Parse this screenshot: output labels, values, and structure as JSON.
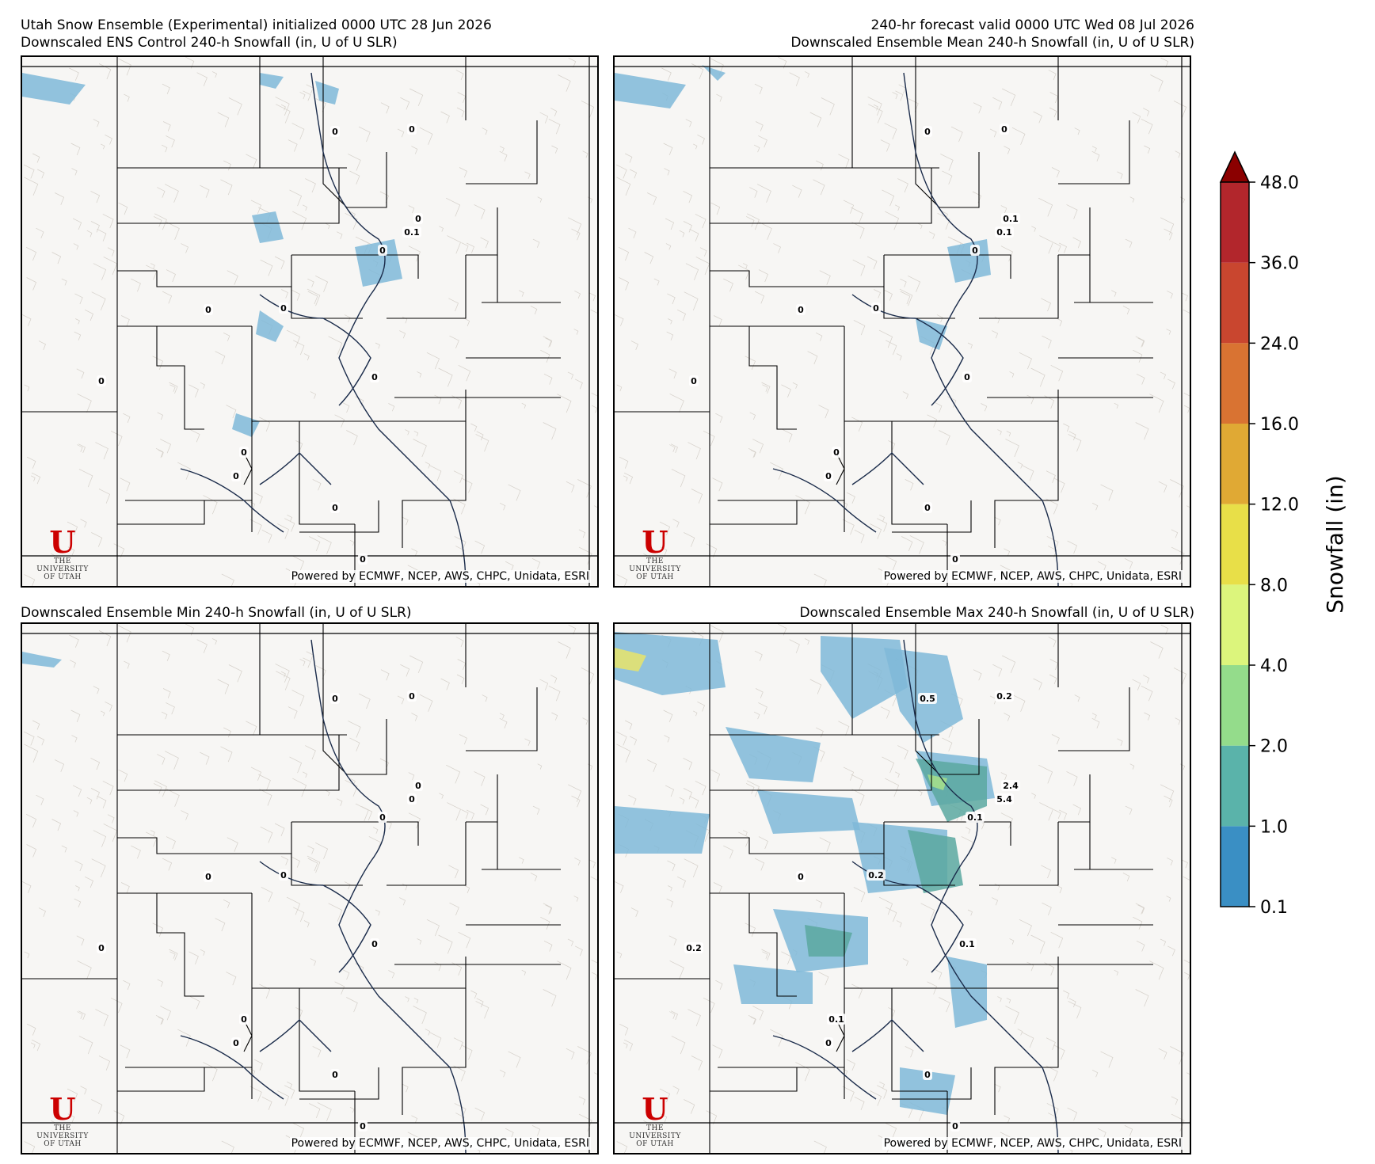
{
  "header": {
    "title_left": "Utah Snow Ensemble (Experimental) initialized 0000 UTC 28 Jun 2026",
    "title_right": "240-hr forecast valid 0000 UTC Wed 08 Jul 2026"
  },
  "panels": [
    {
      "title": "Downscaled ENS Control 240-h Snowfall (in, U of U SLR)",
      "credit": "Powered by ECMWF, NCEP, AWS, CHPC, Unidata, ESRI",
      "contour_labels": [
        "0",
        "0",
        "0",
        "0.1",
        "0",
        "0",
        "0",
        "0",
        "0",
        "0",
        "0",
        "0",
        "0"
      ]
    },
    {
      "title": "Downscaled Ensemble Mean 240-h Snowfall (in, U of U SLR)",
      "credit": "Powered by ECMWF, NCEP, AWS, CHPC, Unidata, ESRI",
      "contour_labels": [
        "0",
        "0",
        "0.1",
        "0.1",
        "0",
        "0",
        "0",
        "0",
        "0",
        "0",
        "0",
        "0",
        "0"
      ]
    },
    {
      "title": "Downscaled Ensemble Min 240-h Snowfall (in, U of U SLR)",
      "credit": "Powered by ECMWF, NCEP, AWS, CHPC, Unidata, ESRI",
      "contour_labels": [
        "0",
        "0",
        "0",
        "0",
        "0",
        "0",
        "0",
        "0",
        "0",
        "0",
        "0",
        "0",
        "0"
      ]
    },
    {
      "title": "Downscaled Ensemble Max 240-h Snowfall (in, U of U SLR)",
      "credit": "Powered by ECMWF, NCEP, AWS, CHPC, Unidata, ESRI",
      "contour_labels": [
        "0.5",
        "0.2",
        "2.4",
        "5.4",
        "0.1",
        "0",
        "0.2",
        "0.2",
        "0.1",
        "0.1",
        "0",
        "0",
        "0"
      ]
    }
  ],
  "logo": {
    "letter": "U",
    "line1": "THE",
    "line2": "UNIVERSITY",
    "line3": "OF UTAH"
  },
  "colorbar": {
    "label": "Snowfall (in)",
    "ticks": [
      "0.1",
      "1.0",
      "2.0",
      "4.0",
      "8.0",
      "12.0",
      "16.0",
      "24.0",
      "36.0",
      "48.0"
    ],
    "colors": [
      "#3a8fc4",
      "#5ab3aa",
      "#94dc8b",
      "#dcf57c",
      "#e8df48",
      "#e0a934",
      "#d97332",
      "#c9462f",
      "#b2262c"
    ],
    "extend_color": "#8b0000"
  },
  "snow_colors": {
    "light": "#7fb8d8",
    "med": "#5aa8a0",
    "heavy": "#a8e08a",
    "high": "#e8e46a"
  }
}
